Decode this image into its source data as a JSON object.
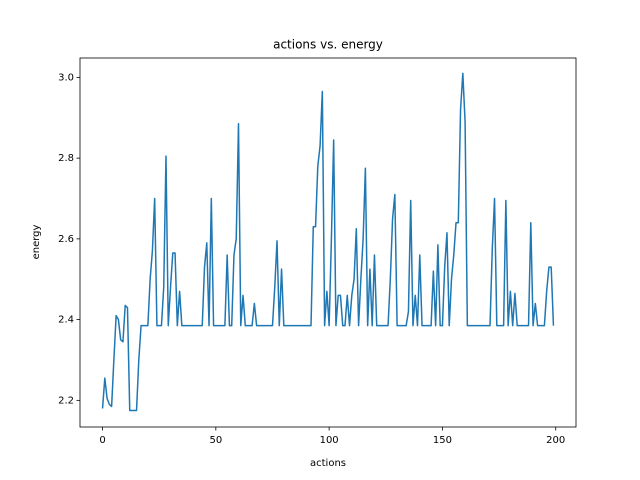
{
  "chart_data": {
    "type": "line",
    "title": "actions vs. energy",
    "x_label": "actions",
    "y_label": "energy",
    "series": [
      {
        "color": "#1f77b4",
        "values": [
          2.18,
          2.255,
          2.205,
          2.19,
          2.185,
          2.3,
          2.41,
          2.4,
          2.35,
          2.345,
          2.435,
          2.43,
          2.175,
          2.175,
          2.175,
          2.175,
          2.3,
          2.385,
          2.385,
          2.385,
          2.385,
          2.5,
          2.57,
          2.7,
          2.385,
          2.385,
          2.385,
          2.48,
          2.805,
          2.385,
          2.48,
          2.565,
          2.565,
          2.385,
          2.47,
          2.385,
          2.385,
          2.385,
          2.385,
          2.385,
          2.385,
          2.385,
          2.385,
          2.385,
          2.385,
          2.53,
          2.59,
          2.385,
          2.7,
          2.385,
          2.385,
          2.385,
          2.385,
          2.385,
          2.385,
          2.56,
          2.385,
          2.385,
          2.56,
          2.6,
          2.885,
          2.385,
          2.46,
          2.385,
          2.385,
          2.385,
          2.385,
          2.44,
          2.385,
          2.385,
          2.385,
          2.385,
          2.385,
          2.385,
          2.385,
          2.385,
          2.48,
          2.595,
          2.385,
          2.525,
          2.385,
          2.385,
          2.385,
          2.385,
          2.385,
          2.385,
          2.385,
          2.385,
          2.385,
          2.385,
          2.385,
          2.385,
          2.385,
          2.63,
          2.63,
          2.78,
          2.83,
          2.965,
          2.385,
          2.47,
          2.385,
          2.6,
          2.845,
          2.385,
          2.46,
          2.46,
          2.385,
          2.385,
          2.46,
          2.385,
          2.46,
          2.5,
          2.625,
          2.385,
          2.5,
          2.6,
          2.775,
          2.385,
          2.525,
          2.385,
          2.56,
          2.385,
          2.385,
          2.385,
          2.385,
          2.385,
          2.385,
          2.5,
          2.65,
          2.71,
          2.385,
          2.385,
          2.385,
          2.385,
          2.385,
          2.42,
          2.695,
          2.385,
          2.46,
          2.385,
          2.56,
          2.385,
          2.385,
          2.385,
          2.385,
          2.385,
          2.52,
          2.385,
          2.585,
          2.385,
          2.385,
          2.53,
          2.615,
          2.385,
          2.5,
          2.56,
          2.64,
          2.64,
          2.92,
          3.01,
          2.89,
          2.385,
          2.385,
          2.385,
          2.385,
          2.385,
          2.385,
          2.385,
          2.385,
          2.385,
          2.385,
          2.385,
          2.575,
          2.7,
          2.385,
          2.385,
          2.385,
          2.385,
          2.695,
          2.385,
          2.47,
          2.385,
          2.465,
          2.385,
          2.385,
          2.385,
          2.385,
          2.385,
          2.385,
          2.64,
          2.385,
          2.44,
          2.385,
          2.385,
          2.385,
          2.385,
          2.47,
          2.53,
          2.53,
          2.385
        ]
      }
    ],
    "xlim": [
      -9.95,
      208.95
    ],
    "xticks": [
      0,
      50,
      100,
      150,
      200
    ],
    "ylim": [
      2.134,
      3.048
    ],
    "yticks": [
      2.2,
      2.4,
      2.6,
      2.8,
      {
        "value": 3,
        "label": "3.0"
      }
    ]
  }
}
